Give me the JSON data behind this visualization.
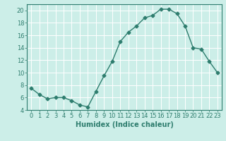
{
  "x": [
    0,
    1,
    2,
    3,
    4,
    5,
    6,
    7,
    8,
    9,
    10,
    11,
    12,
    13,
    14,
    15,
    16,
    17,
    18,
    19,
    20,
    21,
    22,
    23
  ],
  "y": [
    7.5,
    6.5,
    5.8,
    6.0,
    6.0,
    5.5,
    4.8,
    4.5,
    7.0,
    9.5,
    11.8,
    15.0,
    16.5,
    17.5,
    18.8,
    19.2,
    20.2,
    20.2,
    19.5,
    17.5,
    14.0,
    13.8,
    11.8,
    10.0
  ],
  "color": "#2e7d6e",
  "bg_color": "#cceee8",
  "grid_color": "#ffffff",
  "xlabel": "Humidex (Indice chaleur)",
  "ylim": [
    4,
    21
  ],
  "xlim": [
    -0.5,
    23.5
  ],
  "yticks": [
    4,
    6,
    8,
    10,
    12,
    14,
    16,
    18,
    20
  ],
  "xticks": [
    0,
    1,
    2,
    3,
    4,
    5,
    6,
    7,
    8,
    9,
    10,
    11,
    12,
    13,
    14,
    15,
    16,
    17,
    18,
    19,
    20,
    21,
    22,
    23
  ],
  "marker": "D",
  "markersize": 2.5,
  "linewidth": 1.0,
  "xlabel_fontsize": 7,
  "tick_fontsize": 6
}
